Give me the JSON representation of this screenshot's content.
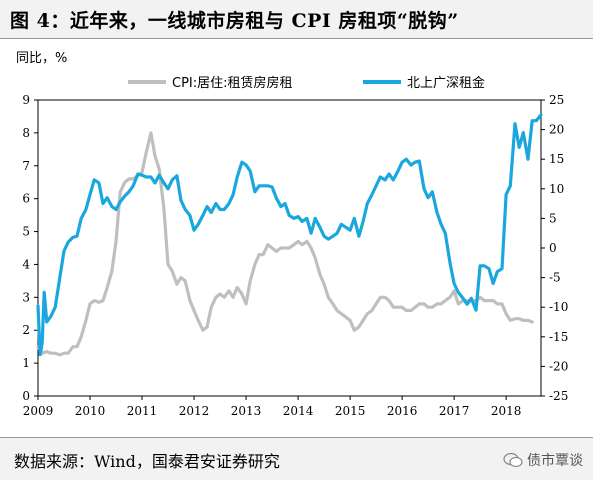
{
  "header": {
    "title": "图 4：近年来，一线城市房租与 CPI 房租项“脱钩”"
  },
  "footer": {
    "source": "数据来源：Wind，国泰君安证券研究",
    "watermark": "债市覃谈"
  },
  "chart_data": {
    "type": "line",
    "title": "图 4：近年来，一线城市房租与 CPI 房租项“脱钩”",
    "ylabel_left": "同比，%",
    "x_ticks": [
      "2009",
      "2010",
      "2011",
      "2012",
      "2013",
      "2014",
      "2015",
      "2016",
      "2017",
      "2018"
    ],
    "ylim_left": [
      0,
      9
    ],
    "yticks_left": [
      0,
      1,
      2,
      3,
      4,
      5,
      6,
      7,
      8,
      9
    ],
    "ylim_right": [
      -25,
      25
    ],
    "yticks_right": [
      -25,
      -20,
      -15,
      -10,
      -5,
      0,
      5,
      10,
      15,
      20,
      25
    ],
    "grid": false,
    "legend_position": "top",
    "series": [
      {
        "name": "CPI:居住:租赁房房租",
        "axis": "left",
        "color": "#bfbfbf",
        "points": [
          [
            2009.0,
            1.5
          ],
          [
            2009.08,
            1.3
          ],
          [
            2009.17,
            1.35
          ],
          [
            2009.25,
            1.3
          ],
          [
            2009.33,
            1.3
          ],
          [
            2009.42,
            1.25
          ],
          [
            2009.5,
            1.3
          ],
          [
            2009.58,
            1.3
          ],
          [
            2009.67,
            1.5
          ],
          [
            2009.75,
            1.5
          ],
          [
            2009.83,
            1.8
          ],
          [
            2009.92,
            2.3
          ],
          [
            2010.0,
            2.8
          ],
          [
            2010.08,
            2.9
          ],
          [
            2010.17,
            2.85
          ],
          [
            2010.25,
            2.9
          ],
          [
            2010.33,
            3.3
          ],
          [
            2010.42,
            3.8
          ],
          [
            2010.5,
            4.7
          ],
          [
            2010.58,
            6.2
          ],
          [
            2010.67,
            6.5
          ],
          [
            2010.75,
            6.6
          ],
          [
            2010.83,
            6.6
          ],
          [
            2010.92,
            6.7
          ],
          [
            2011.0,
            6.8
          ],
          [
            2011.08,
            7.4
          ],
          [
            2011.17,
            8.0
          ],
          [
            2011.25,
            7.3
          ],
          [
            2011.33,
            6.9
          ],
          [
            2011.42,
            5.7
          ],
          [
            2011.5,
            4.0
          ],
          [
            2011.58,
            3.8
          ],
          [
            2011.67,
            3.4
          ],
          [
            2011.75,
            3.6
          ],
          [
            2011.83,
            3.5
          ],
          [
            2011.92,
            2.9
          ],
          [
            2012.0,
            2.6
          ],
          [
            2012.08,
            2.3
          ],
          [
            2012.17,
            2.0
          ],
          [
            2012.25,
            2.1
          ],
          [
            2012.33,
            2.7
          ],
          [
            2012.42,
            3.0
          ],
          [
            2012.5,
            3.1
          ],
          [
            2012.58,
            3.0
          ],
          [
            2012.67,
            3.2
          ],
          [
            2012.75,
            3.0
          ],
          [
            2012.83,
            3.3
          ],
          [
            2012.92,
            3.1
          ],
          [
            2013.0,
            2.8
          ],
          [
            2013.08,
            3.5
          ],
          [
            2013.17,
            4.0
          ],
          [
            2013.25,
            4.3
          ],
          [
            2013.33,
            4.3
          ],
          [
            2013.42,
            4.6
          ],
          [
            2013.5,
            4.5
          ],
          [
            2013.58,
            4.4
          ],
          [
            2013.67,
            4.5
          ],
          [
            2013.75,
            4.5
          ],
          [
            2013.83,
            4.5
          ],
          [
            2013.92,
            4.6
          ],
          [
            2014.0,
            4.7
          ],
          [
            2014.08,
            4.6
          ],
          [
            2014.17,
            4.7
          ],
          [
            2014.25,
            4.5
          ],
          [
            2014.33,
            4.2
          ],
          [
            2014.42,
            3.7
          ],
          [
            2014.5,
            3.4
          ],
          [
            2014.58,
            3.0
          ],
          [
            2014.67,
            2.8
          ],
          [
            2014.75,
            2.6
          ],
          [
            2014.83,
            2.5
          ],
          [
            2014.92,
            2.4
          ],
          [
            2015.0,
            2.3
          ],
          [
            2015.08,
            2.0
          ],
          [
            2015.17,
            2.1
          ],
          [
            2015.25,
            2.3
          ],
          [
            2015.33,
            2.5
          ],
          [
            2015.42,
            2.6
          ],
          [
            2015.5,
            2.8
          ],
          [
            2015.58,
            3.0
          ],
          [
            2015.67,
            3.0
          ],
          [
            2015.75,
            2.9
          ],
          [
            2015.83,
            2.7
          ],
          [
            2015.92,
            2.7
          ],
          [
            2016.0,
            2.7
          ],
          [
            2016.08,
            2.6
          ],
          [
            2016.17,
            2.6
          ],
          [
            2016.25,
            2.7
          ],
          [
            2016.33,
            2.8
          ],
          [
            2016.42,
            2.8
          ],
          [
            2016.5,
            2.7
          ],
          [
            2016.58,
            2.7
          ],
          [
            2016.67,
            2.8
          ],
          [
            2016.75,
            2.8
          ],
          [
            2016.83,
            2.9
          ],
          [
            2016.92,
            3.0
          ],
          [
            2017.0,
            3.2
          ],
          [
            2017.08,
            2.8
          ],
          [
            2017.17,
            2.9
          ],
          [
            2017.25,
            2.9
          ],
          [
            2017.33,
            2.9
          ],
          [
            2017.42,
            2.9
          ],
          [
            2017.5,
            3.0
          ],
          [
            2017.58,
            2.9
          ],
          [
            2017.67,
            2.9
          ],
          [
            2017.75,
            2.9
          ],
          [
            2017.83,
            2.8
          ],
          [
            2017.92,
            2.8
          ],
          [
            2018.0,
            2.5
          ],
          [
            2018.08,
            2.3
          ],
          [
            2018.17,
            2.35
          ],
          [
            2018.25,
            2.35
          ],
          [
            2018.33,
            2.3
          ],
          [
            2018.42,
            2.3
          ],
          [
            2018.5,
            2.25
          ]
        ]
      },
      {
        "name": "北上广深租金",
        "axis": "right",
        "color": "#1aa7de",
        "points": [
          [
            2009.0,
            -9.8
          ],
          [
            2009.04,
            -18.0
          ],
          [
            2009.08,
            -16.0
          ],
          [
            2009.12,
            -7.5
          ],
          [
            2009.17,
            -12.5
          ],
          [
            2009.25,
            -11.5
          ],
          [
            2009.33,
            -10.0
          ],
          [
            2009.42,
            -5.0
          ],
          [
            2009.5,
            -0.5
          ],
          [
            2009.58,
            1.0
          ],
          [
            2009.67,
            1.8
          ],
          [
            2009.75,
            2.0
          ],
          [
            2009.83,
            5.0
          ],
          [
            2009.92,
            6.5
          ],
          [
            2010.0,
            9.0
          ],
          [
            2010.08,
            11.5
          ],
          [
            2010.17,
            11.0
          ],
          [
            2010.25,
            7.5
          ],
          [
            2010.33,
            8.5
          ],
          [
            2010.42,
            7.0
          ],
          [
            2010.5,
            6.5
          ],
          [
            2010.58,
            7.8
          ],
          [
            2010.67,
            8.8
          ],
          [
            2010.75,
            9.5
          ],
          [
            2010.83,
            10.5
          ],
          [
            2010.92,
            12.5
          ],
          [
            2011.0,
            12.3
          ],
          [
            2011.08,
            12.0
          ],
          [
            2011.17,
            12.0
          ],
          [
            2011.25,
            11.0
          ],
          [
            2011.33,
            12.3
          ],
          [
            2011.42,
            11.0
          ],
          [
            2011.5,
            10.0
          ],
          [
            2011.58,
            11.5
          ],
          [
            2011.67,
            12.2
          ],
          [
            2011.75,
            8.0
          ],
          [
            2011.83,
            6.5
          ],
          [
            2011.92,
            5.5
          ],
          [
            2012.0,
            3.0
          ],
          [
            2012.08,
            4.0
          ],
          [
            2012.17,
            5.5
          ],
          [
            2012.25,
            7.0
          ],
          [
            2012.33,
            6.0
          ],
          [
            2012.42,
            7.5
          ],
          [
            2012.5,
            6.5
          ],
          [
            2012.58,
            6.5
          ],
          [
            2012.67,
            7.5
          ],
          [
            2012.75,
            9.0
          ],
          [
            2012.83,
            12.0
          ],
          [
            2012.92,
            14.5
          ],
          [
            2013.0,
            14.0
          ],
          [
            2013.08,
            13.0
          ],
          [
            2013.17,
            9.5
          ],
          [
            2013.25,
            10.5
          ],
          [
            2013.33,
            10.5
          ],
          [
            2013.42,
            10.5
          ],
          [
            2013.5,
            10.3
          ],
          [
            2013.58,
            8.5
          ],
          [
            2013.67,
            7.0
          ],
          [
            2013.75,
            7.5
          ],
          [
            2013.83,
            5.5
          ],
          [
            2013.92,
            5.0
          ],
          [
            2014.0,
            5.3
          ],
          [
            2014.08,
            4.5
          ],
          [
            2014.17,
            5.0
          ],
          [
            2014.25,
            2.5
          ],
          [
            2014.33,
            5.0
          ],
          [
            2014.42,
            3.5
          ],
          [
            2014.5,
            2.0
          ],
          [
            2014.58,
            1.5
          ],
          [
            2014.67,
            2.0
          ],
          [
            2014.75,
            2.5
          ],
          [
            2014.83,
            4.0
          ],
          [
            2014.92,
            3.5
          ],
          [
            2015.0,
            3.0
          ],
          [
            2015.08,
            5.0
          ],
          [
            2015.17,
            2.0
          ],
          [
            2015.25,
            4.5
          ],
          [
            2015.33,
            7.5
          ],
          [
            2015.42,
            9.0
          ],
          [
            2015.5,
            10.5
          ],
          [
            2015.58,
            12.0
          ],
          [
            2015.67,
            11.5
          ],
          [
            2015.75,
            12.5
          ],
          [
            2015.83,
            11.5
          ],
          [
            2015.92,
            13.0
          ],
          [
            2016.0,
            14.5
          ],
          [
            2016.08,
            15.0
          ],
          [
            2016.17,
            14.0
          ],
          [
            2016.25,
            14.5
          ],
          [
            2016.33,
            14.7
          ],
          [
            2016.42,
            10.0
          ],
          [
            2016.5,
            8.5
          ],
          [
            2016.58,
            9.5
          ],
          [
            2016.67,
            6.0
          ],
          [
            2016.75,
            4.0
          ],
          [
            2016.83,
            2.5
          ],
          [
            2016.92,
            -2.5
          ],
          [
            2017.0,
            -6.0
          ],
          [
            2017.08,
            -7.5
          ],
          [
            2017.17,
            -8.5
          ],
          [
            2017.25,
            -9.5
          ],
          [
            2017.33,
            -8.5
          ],
          [
            2017.42,
            -10.5
          ],
          [
            2017.5,
            -3.0
          ],
          [
            2017.58,
            -3.0
          ],
          [
            2017.67,
            -3.5
          ],
          [
            2017.75,
            -6.0
          ],
          [
            2017.83,
            -4.0
          ],
          [
            2017.92,
            -3.5
          ],
          [
            2018.0,
            9.0
          ],
          [
            2018.08,
            10.5
          ],
          [
            2018.17,
            21.0
          ],
          [
            2018.25,
            17.0
          ],
          [
            2018.33,
            19.5
          ],
          [
            2018.42,
            15.0
          ],
          [
            2018.5,
            21.5
          ],
          [
            2018.58,
            21.5
          ],
          [
            2018.67,
            22.5
          ]
        ]
      }
    ]
  }
}
